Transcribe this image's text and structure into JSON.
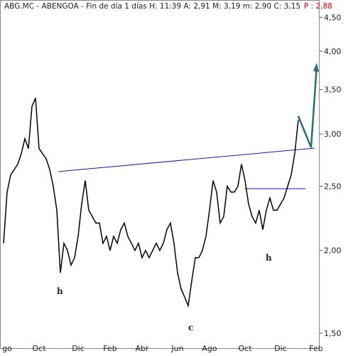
{
  "chart_data": {
    "type": "line",
    "header": "ABG.MC - ABENGOA - Fin de día 1 días H: 11:39 A: 2,91 M: 3,19 m: 2,90 C: 3,15",
    "header_p": "P : 2,88",
    "categories": [
      null,
      "go",
      null,
      null,
      null,
      null,
      null,
      null,
      null,
      null,
      "Oct",
      null,
      null,
      null,
      null,
      null,
      null,
      null,
      null,
      null,
      null,
      "Dic",
      null,
      null,
      null,
      null,
      null,
      null,
      null,
      null,
      "Feb",
      null,
      null,
      null,
      null,
      null,
      null,
      null,
      null,
      "Abr",
      null,
      null,
      null,
      null,
      null,
      null,
      null,
      null,
      null,
      "Jun",
      null,
      null,
      null,
      null,
      null,
      null,
      null,
      null,
      "Ago",
      null,
      null,
      null,
      null,
      null,
      null,
      null,
      null,
      null,
      "Oct",
      null,
      null,
      null,
      null,
      null,
      null,
      null,
      null,
      null,
      "Dic",
      null,
      null,
      null,
      null,
      null,
      null,
      null,
      null,
      null,
      "Feb",
      null
    ],
    "series": [
      {
        "color": "#000000",
        "values": [
          2.05,
          2.45,
          2.6,
          2.65,
          2.7,
          2.8,
          2.95,
          2.85,
          3.3,
          3.4,
          2.85,
          2.8,
          2.75,
          2.65,
          2.5,
          2.3,
          1.85,
          2.05,
          2.0,
          1.9,
          1.95,
          2.1,
          2.35,
          2.55,
          2.3,
          2.25,
          2.2,
          2.2,
          2.05,
          2.1,
          2.0,
          2.1,
          2.05,
          2.15,
          2.2,
          2.1,
          2.05,
          2.0,
          2.05,
          1.95,
          2.0,
          1.95,
          2.0,
          2.05,
          2.0,
          2.05,
          2.15,
          2.2,
          2.05,
          1.85,
          1.75,
          1.7,
          1.65,
          1.8,
          1.95,
          1.95,
          2.0,
          2.1,
          2.3,
          2.55,
          2.45,
          2.2,
          2.25,
          2.5,
          2.45,
          2.45,
          2.5,
          2.7,
          2.55,
          2.35,
          2.25,
          2.2,
          2.3,
          2.15,
          2.3,
          2.4,
          2.3,
          2.3,
          2.35,
          2.4,
          2.5,
          2.6,
          2.8,
          3.15,
          null,
          null,
          null,
          null,
          null,
          null
        ]
      }
    ],
    "ylim": [
      1.42,
      4.72
    ],
    "yticks": [
      {
        "value": 1.5,
        "label": "1,50"
      },
      {
        "value": 2.0,
        "label": "2,00"
      },
      {
        "value": 2.5,
        "label": "2,50"
      },
      {
        "value": 3.0,
        "label": "3,00"
      },
      {
        "value": 3.5,
        "label": "3,50"
      },
      {
        "value": 4.0,
        "label": "4,00"
      },
      {
        "value": 4.5,
        "label": "4,50"
      }
    ],
    "log_scale": true,
    "grid": false,
    "annotations": [
      "h",
      "c",
      "h"
    ]
  }
}
